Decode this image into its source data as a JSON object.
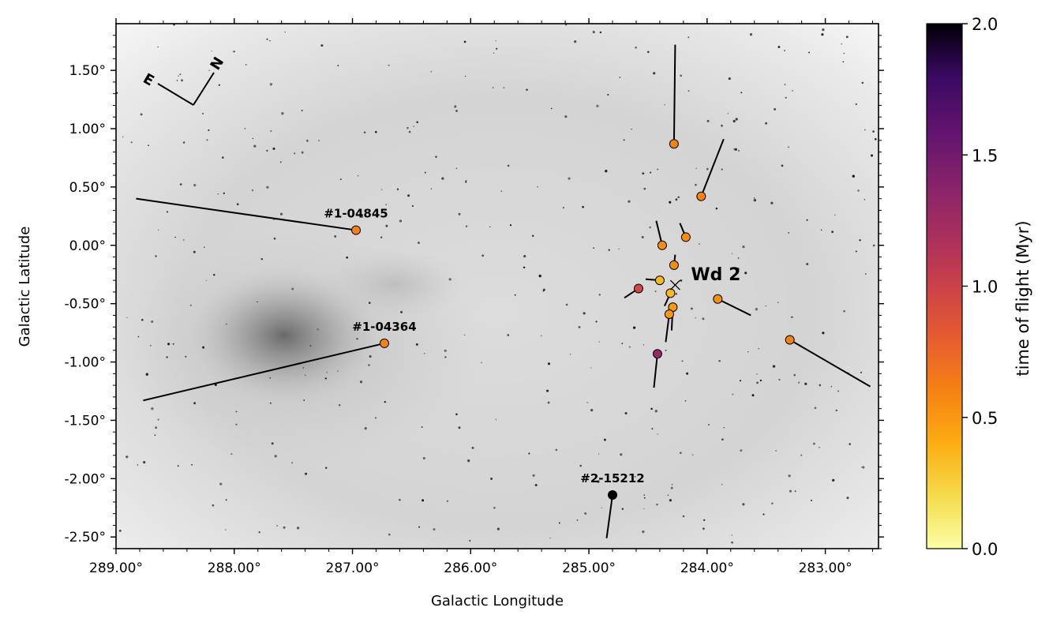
{
  "chart_data": {
    "type": "scatter",
    "xlabel": "Galactic Longitude",
    "ylabel": "Galactic Latitude",
    "xlim": [
      289.0,
      282.55
    ],
    "ylim": [
      -2.6,
      1.9
    ],
    "x_ticks": [
      289.0,
      288.0,
      287.0,
      286.0,
      285.0,
      284.0,
      283.0
    ],
    "x_tick_labels": [
      "289.00°",
      "288.00°",
      "287.00°",
      "286.00°",
      "285.00°",
      "284.00°",
      "283.00°"
    ],
    "y_ticks": [
      1.5,
      1.0,
      0.5,
      0.0,
      -0.5,
      -1.0,
      -1.5,
      -2.0,
      -2.5
    ],
    "y_tick_labels": [
      "1.50°",
      "1.00°",
      "0.50°",
      "0.00°",
      "-0.50°",
      "-1.00°",
      "-1.50°",
      "-2.00°",
      "-2.50°"
    ],
    "background": "greyscale sky image of the Carina nebula region",
    "compass": {
      "east_label": "E",
      "north_label": "N"
    },
    "cluster": {
      "name": "Wd 2",
      "l": 284.27,
      "b": -0.34
    },
    "colorbar": {
      "label": "time of flight (Myr)",
      "min": 0.0,
      "max": 2.0,
      "ticks": [
        "0.0",
        "0.5",
        "1.0",
        "1.5",
        "2.0"
      ],
      "colormap": "inferno_r"
    },
    "stars": [
      {
        "l": 286.97,
        "b": 0.13,
        "trace_l": 288.83,
        "trace_b": 0.4,
        "tof": 0.6,
        "label": "#1-04845"
      },
      {
        "l": 286.73,
        "b": -0.84,
        "trace_l": 288.77,
        "trace_b": -1.33,
        "tof": 0.6,
        "label": "#1-04364"
      },
      {
        "l": 284.8,
        "b": -2.14,
        "trace_l": 284.85,
        "trace_b": -2.51,
        "tof": 2.0,
        "label": "#2-15212"
      },
      {
        "l": 284.28,
        "b": 0.87,
        "trace_l": 284.27,
        "trace_b": 1.72,
        "tof": 0.6,
        "label": ""
      },
      {
        "l": 284.05,
        "b": 0.42,
        "trace_l": 283.86,
        "trace_b": 0.91,
        "tof": 0.6,
        "label": ""
      },
      {
        "l": 284.18,
        "b": 0.07,
        "trace_l": 284.23,
        "trace_b": 0.19,
        "tof": 0.55,
        "label": ""
      },
      {
        "l": 284.38,
        "b": 0.0,
        "trace_l": 284.43,
        "trace_b": 0.21,
        "tof": 0.55,
        "label": ""
      },
      {
        "l": 284.28,
        "b": -0.17,
        "trace_l": 284.27,
        "trace_b": -0.08,
        "tof": 0.55,
        "label": ""
      },
      {
        "l": 284.4,
        "b": -0.3,
        "trace_l": 284.52,
        "trace_b": -0.29,
        "tof": 0.35,
        "label": ""
      },
      {
        "l": 284.58,
        "b": -0.37,
        "trace_l": 284.7,
        "trace_b": -0.45,
        "tof": 0.95,
        "label": ""
      },
      {
        "l": 284.31,
        "b": -0.41,
        "trace_l": 284.36,
        "trace_b": -0.52,
        "tof": 0.35,
        "label": ""
      },
      {
        "l": 284.29,
        "b": -0.53,
        "trace_l": 284.3,
        "trace_b": -0.73,
        "tof": 0.5,
        "label": ""
      },
      {
        "l": 284.32,
        "b": -0.59,
        "trace_l": 284.35,
        "trace_b": -0.83,
        "tof": 0.5,
        "label": ""
      },
      {
        "l": 283.91,
        "b": -0.46,
        "trace_l": 283.63,
        "trace_b": -0.6,
        "tof": 0.55,
        "label": ""
      },
      {
        "l": 283.3,
        "b": -0.81,
        "trace_l": 282.62,
        "trace_b": -1.21,
        "tof": 0.6,
        "label": ""
      },
      {
        "l": 284.42,
        "b": -0.93,
        "trace_l": 284.45,
        "trace_b": -1.22,
        "tof": 1.3,
        "label": ""
      }
    ]
  }
}
